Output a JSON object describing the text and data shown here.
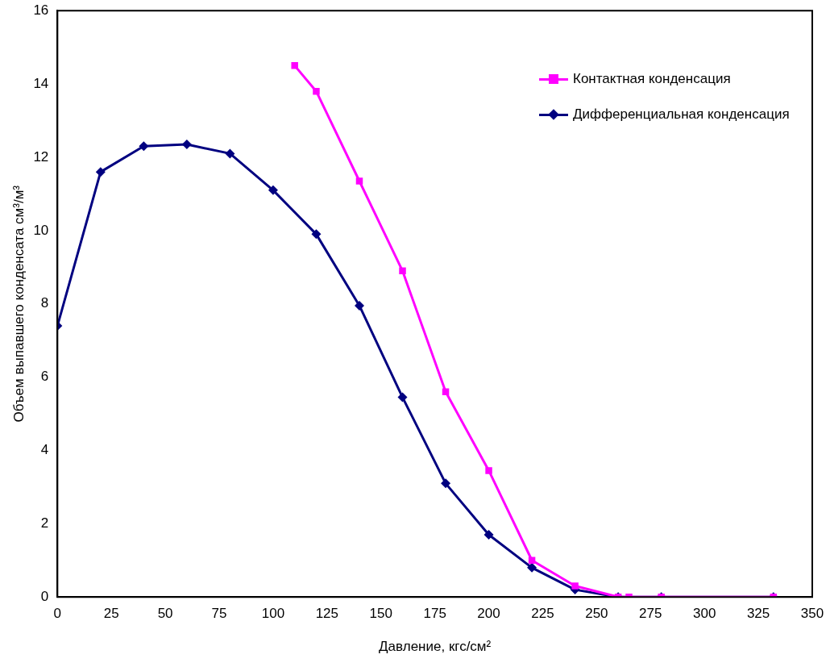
{
  "chart_data": {
    "type": "line",
    "xlabel": "Давление, кгс/см²",
    "ylabel": "Объем выпавшего конденсата см³/м³",
    "xlim": [
      0,
      350
    ],
    "xticks": [
      0,
      25,
      50,
      75,
      100,
      125,
      150,
      175,
      200,
      225,
      250,
      275,
      300,
      325,
      350
    ],
    "ylim": [
      0,
      16
    ],
    "yticks": [
      0,
      2,
      4,
      6,
      8,
      10,
      12,
      14,
      16
    ],
    "grid": false,
    "legend": "top right",
    "line_style": "solid",
    "series": [
      {
        "name": "Контактная конденсация",
        "color": "#ff00ff",
        "marker": "square",
        "x": [
          110,
          120,
          140,
          160,
          180,
          200,
          220,
          240,
          260,
          265,
          280,
          332
        ],
        "values": [
          14.5,
          13.8,
          11.35,
          8.9,
          5.6,
          3.45,
          1.0,
          0.3,
          0,
          0,
          0,
          0
        ]
      },
      {
        "name": "Дифференциальная конденсация",
        "color": "#000080",
        "marker": "diamond",
        "x": [
          0,
          20,
          40,
          60,
          80,
          100,
          120,
          140,
          160,
          180,
          200,
          220,
          240,
          260,
          280,
          332
        ],
        "values": [
          7.4,
          11.6,
          12.3,
          12.35,
          12.1,
          11.1,
          9.9,
          7.95,
          5.45,
          3.1,
          1.7,
          0.8,
          0.2,
          0,
          0,
          0
        ]
      }
    ]
  }
}
